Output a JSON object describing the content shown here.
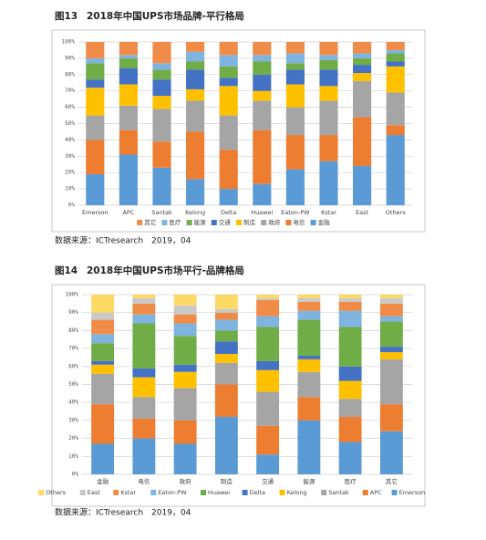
{
  "chart_data": [
    {
      "type": "stacked_bar",
      "figure_label": "图13",
      "title": "2018年中国UPS市场品牌-平行格局",
      "source": "数据来源：ICTresearch　2019，04",
      "categories": [
        "Emerson",
        "APC",
        "Santak",
        "Kelong",
        "Delta",
        "Huawei",
        "Eaton-PW",
        "Kstar",
        "East",
        "Others"
      ],
      "ylim": [
        0,
        100
      ],
      "yticks": [
        {
          "value": 0,
          "label": "0%"
        },
        {
          "value": 10,
          "label": "10%"
        },
        {
          "value": 20,
          "label": "20%"
        },
        {
          "value": 30,
          "label": "30%"
        },
        {
          "value": 40,
          "label": "40%"
        },
        {
          "value": 50,
          "label": "50%"
        },
        {
          "value": 60,
          "label": "60%"
        },
        {
          "value": 70,
          "label": "70%"
        },
        {
          "value": 80,
          "label": "80%"
        },
        {
          "value": 90,
          "label": "90%"
        },
        {
          "value": 100,
          "label": "100%"
        }
      ],
      "grid": true,
      "series": [
        {
          "name": "金融",
          "color": "#5b9bd5",
          "values": [
            19,
            31,
            23,
            16,
            10,
            13,
            22,
            27,
            24,
            43
          ]
        },
        {
          "name": "电信",
          "color": "#ed7d31",
          "values": [
            21,
            15,
            16,
            29,
            24,
            33,
            21,
            16,
            30,
            6
          ]
        },
        {
          "name": "政府",
          "color": "#a5a5a5",
          "values": [
            15,
            15,
            20,
            19,
            21,
            18,
            17,
            21,
            22,
            20
          ]
        },
        {
          "name": "制造",
          "color": "#ffc000",
          "values": [
            17,
            13,
            8,
            7,
            18,
            6,
            14,
            9,
            5,
            16
          ]
        },
        {
          "name": "交通",
          "color": "#4472c4",
          "values": [
            5,
            10,
            10,
            12,
            5,
            10,
            9,
            10,
            5,
            3
          ]
        },
        {
          "name": "能源",
          "color": "#70ad47",
          "values": [
            10,
            6,
            6,
            5,
            7,
            8,
            4,
            6,
            4,
            5
          ]
        },
        {
          "name": "医疗",
          "color": "#7fb3e0",
          "values": [
            3,
            2,
            4,
            6,
            7,
            4,
            6,
            3,
            3,
            2
          ]
        },
        {
          "name": "其它",
          "color": "#f08c47",
          "values": [
            10,
            8,
            13,
            6,
            8,
            8,
            7,
            8,
            7,
            5
          ]
        }
      ]
    },
    {
      "type": "stacked_bar",
      "figure_label": "图14",
      "title": "2018年中国UPS市场平行-品牌格局",
      "source": "数据来源：ICTresearch　2019，04",
      "categories": [
        "金融",
        "电信",
        "政府",
        "制造",
        "交通",
        "能源",
        "医疗",
        "其它"
      ],
      "ylim": [
        0,
        100
      ],
      "yticks": [
        {
          "value": 0,
          "label": "0%"
        },
        {
          "value": 10,
          "label": "10%"
        },
        {
          "value": 20,
          "label": "20%"
        },
        {
          "value": 30,
          "label": "30%"
        },
        {
          "value": 40,
          "label": "40%"
        },
        {
          "value": 50,
          "label": "50%"
        },
        {
          "value": 60,
          "label": "60%"
        },
        {
          "value": 70,
          "label": "70%"
        },
        {
          "value": 80,
          "label": "80%"
        },
        {
          "value": 90,
          "label": "90%"
        },
        {
          "value": 100,
          "label": "100%"
        }
      ],
      "grid": true,
      "series": [
        {
          "name": "Emerson",
          "color": "#5b9bd5",
          "values": [
            17,
            20,
            17,
            32,
            11,
            30,
            18,
            24
          ]
        },
        {
          "name": "APC",
          "color": "#ed7d31",
          "values": [
            22,
            11,
            13,
            18,
            16,
            13,
            14,
            15
          ]
        },
        {
          "name": "Santak",
          "color": "#a5a5a5",
          "values": [
            17,
            12,
            18,
            12,
            19,
            14,
            10,
            25
          ]
        },
        {
          "name": "Kelong",
          "color": "#ffc000",
          "values": [
            5,
            11,
            9,
            5,
            12,
            7,
            10,
            4
          ]
        },
        {
          "name": "Delta",
          "color": "#4472c4",
          "values": [
            2,
            5,
            4,
            7,
            5,
            2,
            8,
            3
          ]
        },
        {
          "name": "Huawei",
          "color": "#70ad47",
          "values": [
            10,
            25,
            16,
            6,
            19,
            20,
            22,
            14
          ]
        },
        {
          "name": "Eaton-PW",
          "color": "#7fb3e0",
          "values": [
            5,
            5,
            7,
            6,
            6,
            5,
            9,
            3
          ]
        },
        {
          "name": "Kstar",
          "color": "#f08c47",
          "values": [
            8,
            6,
            5,
            4,
            9,
            5,
            5,
            7
          ]
        },
        {
          "name": "East",
          "color": "#c9c9c9",
          "values": [
            4,
            3,
            5,
            2,
            1,
            2,
            2,
            3
          ]
        },
        {
          "name": "Others",
          "color": "#ffd966",
          "values": [
            10,
            2,
            6,
            8,
            2,
            2,
            2,
            2
          ]
        }
      ]
    }
  ]
}
